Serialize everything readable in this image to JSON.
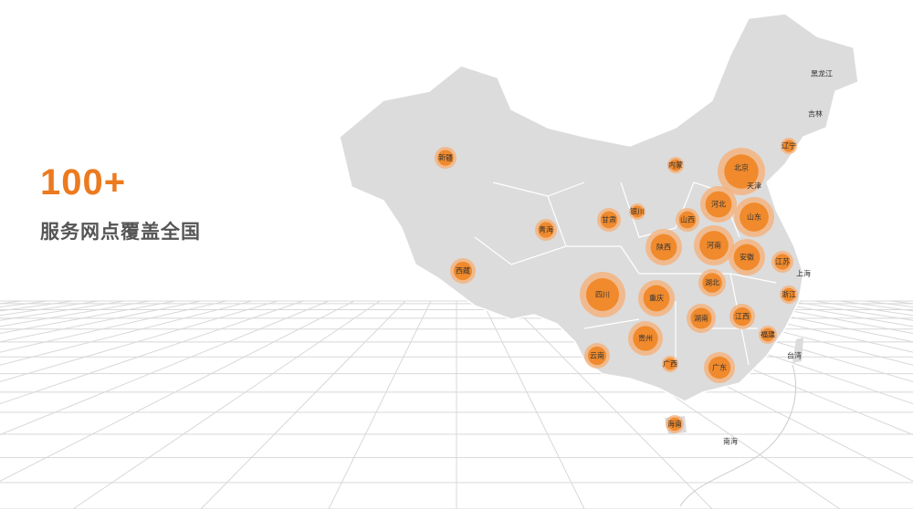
{
  "headline": "100+",
  "subtitle": "服务网点覆盖全国",
  "colors": {
    "accent": "#ec7a1f",
    "map_fill": "#dcdcdc",
    "bubble": "#f08a2c",
    "halo": "#f5b27a"
  },
  "provinces": [
    "新疆",
    "西藏",
    "青海",
    "甘肃",
    "银川",
    "内蒙",
    "北京",
    "天津",
    "河北",
    "山东",
    "山西",
    "陕西",
    "河南",
    "安徽",
    "江苏",
    "上海",
    "浙江",
    "湖北",
    "四川",
    "重庆",
    "湖南",
    "江西",
    "福建",
    "贵州",
    "云南",
    "广西",
    "广东",
    "海南",
    "辽宁",
    "吉林",
    "黑龙江"
  ],
  "other_labels": [
    "台湾",
    "南海"
  ]
}
